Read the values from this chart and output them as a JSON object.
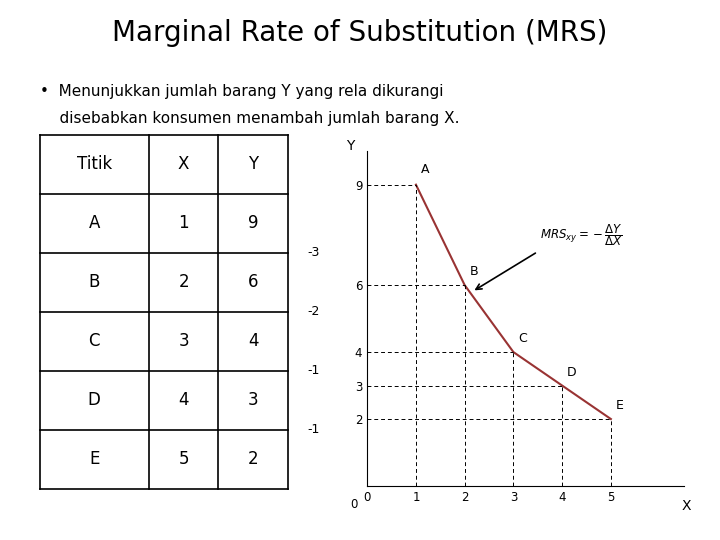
{
  "title": "Marginal Rate of Substitution (MRS)",
  "bullet_line1": "Menunjukkan jumlah barang Y yang rela dikurangi",
  "bullet_line2": "disebabkan konsumen menambah jumlah barang X.",
  "table_headers": [
    "Titik",
    "X",
    "Y"
  ],
  "table_data": [
    [
      "A",
      "1",
      "9"
    ],
    [
      "B",
      "2",
      "6"
    ],
    [
      "C",
      "3",
      "4"
    ],
    [
      "D",
      "4",
      "3"
    ],
    [
      "E",
      "5",
      "2"
    ]
  ],
  "delta_labels": [
    "-3",
    "-2",
    "-1",
    "-1"
  ],
  "points_x": [
    1,
    2,
    3,
    4,
    5
  ],
  "points_y": [
    9,
    6,
    4,
    3,
    2
  ],
  "point_names": [
    "A",
    "B",
    "C",
    "D",
    "E"
  ],
  "xlim": [
    0,
    6.5
  ],
  "ylim": [
    0,
    10
  ],
  "xticks": [
    0,
    1,
    2,
    3,
    4,
    5
  ],
  "ytick_vals": [
    2,
    3,
    4,
    6,
    9
  ],
  "xlabel": "X",
  "ylabel": "Y",
  "background_color": "#ffffff",
  "curve_color": "#993333",
  "text_color": "#000000",
  "title_fontsize": 20,
  "body_fontsize": 11,
  "table_fontsize": 12
}
